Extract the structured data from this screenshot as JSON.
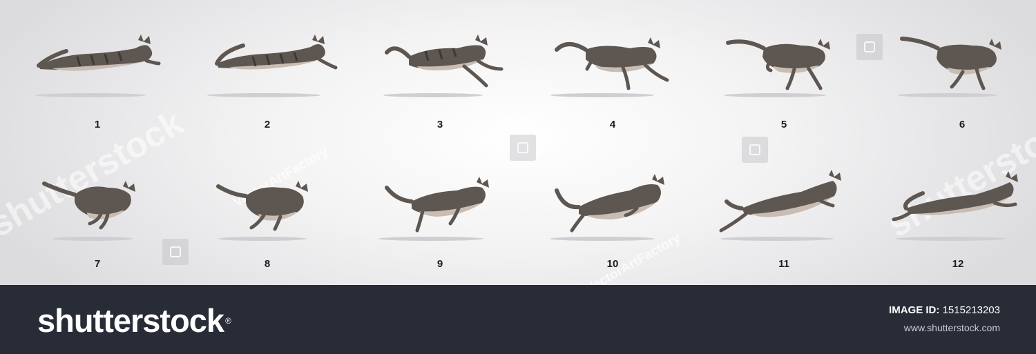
{
  "frames": [
    {
      "label": "1"
    },
    {
      "label": "2"
    },
    {
      "label": "3"
    },
    {
      "label": "4"
    },
    {
      "label": "5"
    },
    {
      "label": "6"
    },
    {
      "label": "7"
    },
    {
      "label": "8"
    },
    {
      "label": "9"
    },
    {
      "label": "10"
    },
    {
      "label": "11"
    },
    {
      "label": "12"
    }
  ],
  "watermarks": {
    "brand": "shutterstock",
    "contributor": "VectorArtFactory"
  },
  "footer": {
    "logo_text": "shutterstock",
    "image_id_label": "IMAGE ID:",
    "image_id_value": "1515213203",
    "website": "www.shutterstock.com"
  },
  "colors": {
    "cat_body": "#5e5650",
    "cat_belly": "#c9bcb2",
    "cat_stripes": "#3e3833",
    "footer_background": "#272c37"
  }
}
